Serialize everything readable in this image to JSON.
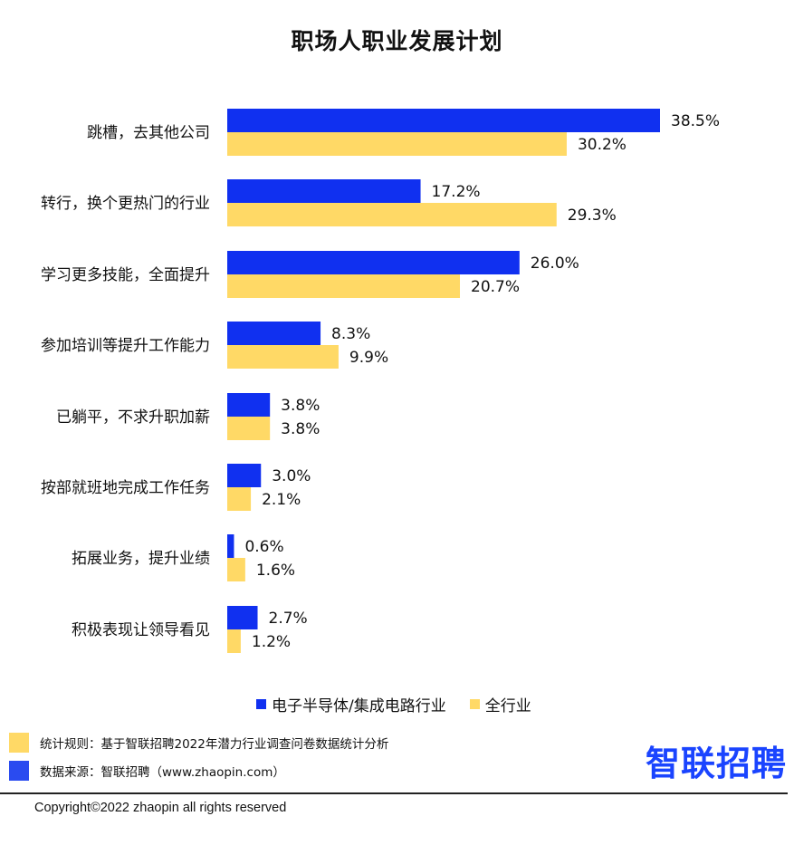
{
  "colors": {
    "series1": "#1030f0",
    "series2": "#ffd966",
    "source_square": "#2a4bf0",
    "logo": "#1a44ff"
  },
  "chart_data": {
    "type": "bar",
    "orientation": "horizontal",
    "title": "职场人职业发展计划",
    "categories": [
      "跳槽，去其他公司",
      "转行，换个更热门的行业",
      "学习更多技能，全面提升",
      "参加培训等提升工作能力",
      "已躺平，不求升职加薪",
      "按部就班地完成工作任务",
      "拓展业务，提升业绩",
      "积极表现让领导看见"
    ],
    "series": [
      {
        "name": "电子半导体/集成电路行业",
        "values": [
          38.5,
          17.2,
          26.0,
          8.3,
          3.8,
          3.0,
          0.6,
          2.7
        ],
        "labels": [
          "38.5%",
          "17.2%",
          "26.0%",
          "8.3%",
          "3.8%",
          "3.0%",
          "0.6%",
          "2.7%"
        ]
      },
      {
        "name": "全行业",
        "values": [
          30.2,
          29.3,
          20.7,
          9.9,
          3.8,
          2.1,
          1.6,
          1.2
        ],
        "labels": [
          "30.2%",
          "29.3%",
          "20.7%",
          "9.9%",
          "3.8%",
          "2.1%",
          "1.6%",
          "1.2%"
        ]
      }
    ],
    "legend_position": "bottom",
    "grid": false
  },
  "footer": {
    "rule": "统计规则：基于智联招聘2022年潜力行业调查问卷数据统计分析",
    "source": "数据来源：智联招聘（www.zhaopin.com）",
    "logo_text": "智联招聘",
    "copyright": "Copyright©2022 zhaopin all rights reserved"
  }
}
